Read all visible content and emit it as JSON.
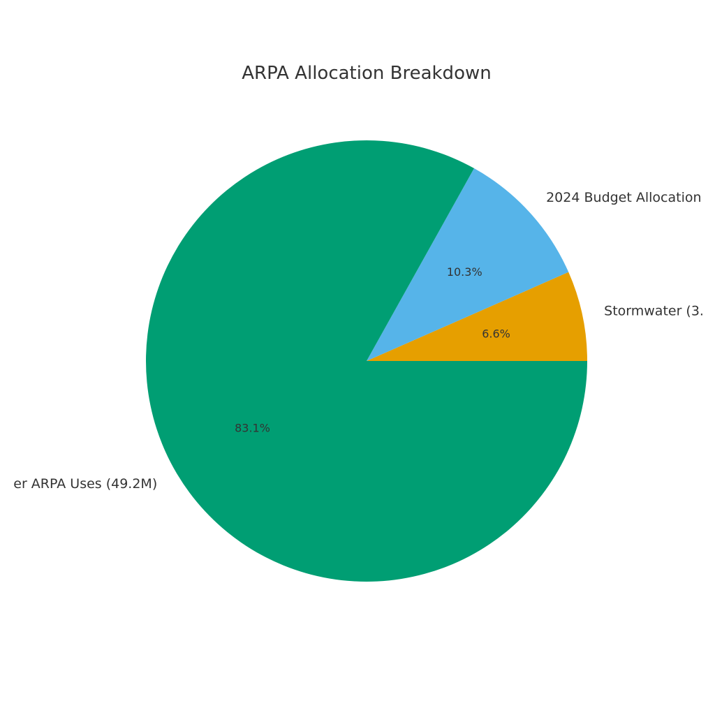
{
  "chart_data": {
    "type": "pie",
    "title": "ARPA Allocation Breakdown",
    "slices": [
      {
        "label": "Stormwater (3.",
        "percent_label": "6.6%",
        "value": 6.6,
        "color": "#E69F00"
      },
      {
        "label": "2024 Budget Allocation",
        "percent_label": "10.3%",
        "value": 10.3,
        "color": "#56B4E9"
      },
      {
        "label": "er ARPA Uses (49.2M)",
        "percent_label": "83.1%",
        "value": 83.1,
        "color": "#009E73"
      }
    ],
    "start_angle_deg": 0,
    "direction": "counterclockwise"
  }
}
